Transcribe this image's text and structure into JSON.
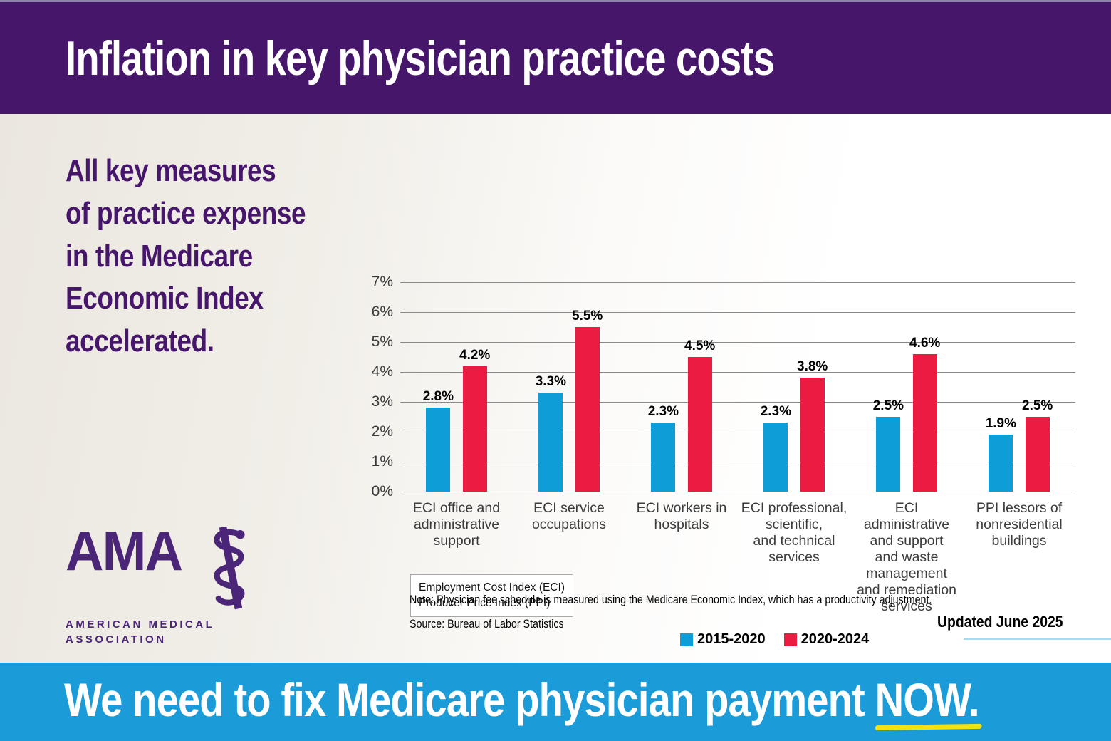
{
  "header": {
    "title": "Inflation in key physician practice costs",
    "bg_color": "#46166b"
  },
  "sidebar": {
    "message": "All key measures\nof practice expense\nin the Medicare\nEconomic Index\naccelerated."
  },
  "chart_data": {
    "type": "bar",
    "title": "",
    "categories": [
      "ECI office and administrative support",
      "ECI service occupations",
      "ECI workers in hospitals",
      "ECI professional, scientific, and technical services",
      "ECI administrative and support and waste management and remediation services",
      "PPI lessors of nonresidential buildings"
    ],
    "category_lines": [
      [
        "ECI office and",
        "administrative",
        "support"
      ],
      [
        "ECI service",
        "occupations"
      ],
      [
        "ECI workers in",
        "hospitals"
      ],
      [
        "ECI professional,",
        "scientific,",
        "and technical",
        "services"
      ],
      [
        "ECI",
        "administrative",
        "and support",
        "and waste",
        "management",
        "and remediation",
        "services"
      ],
      [
        "PPI lessors of",
        "nonresidential",
        "buildings"
      ]
    ],
    "series": [
      {
        "name": "2015-2020",
        "color": "#0f9dd8",
        "values": [
          2.8,
          3.3,
          2.3,
          2.3,
          2.5,
          1.9
        ]
      },
      {
        "name": "2020-2024",
        "color": "#ec1b41",
        "values": [
          4.2,
          5.5,
          4.5,
          3.8,
          4.6,
          2.5
        ]
      }
    ],
    "ylim": [
      0,
      7
    ],
    "yticks": [
      "0%",
      "1%",
      "2%",
      "3%",
      "4%",
      "5%",
      "6%",
      "7%"
    ],
    "xlabel": "",
    "ylabel": "",
    "grid": true,
    "value_labels": true,
    "legend_position": "bottom"
  },
  "definition_box": {
    "text": "Employment Cost Index (ECI)\nProducer Price Index (PPI)"
  },
  "logo": {
    "acronym": "AMA",
    "line1": "AMERICAN MEDICAL",
    "line2": "ASSOCIATION"
  },
  "notes": {
    "note": "Note: Physician fee schedule is measured using the Medicare Economic Index, which has a productivity adjustment.",
    "source": "Source: Bureau of Labor Statistics",
    "updated": "Updated June 2025"
  },
  "footer": {
    "message_prefix": "We need to fix Medicare physician payment ",
    "message_highlight": "NOW.",
    "bg_color": "#1b9cd8",
    "underline_color": "#f2e211"
  }
}
